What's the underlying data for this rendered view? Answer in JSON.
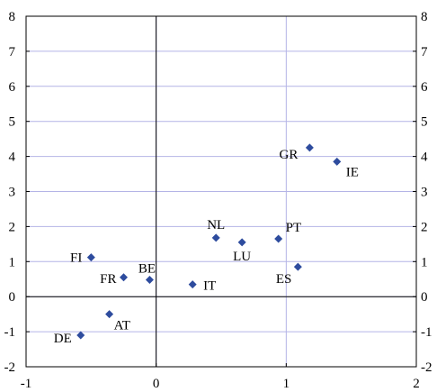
{
  "chart_data": {
    "type": "scatter",
    "title": "",
    "xlabel": "",
    "ylabel": "",
    "xlim": [
      -1,
      2
    ],
    "ylim": [
      -2,
      8
    ],
    "x_ticks": [
      "-1",
      "0",
      "1",
      "2"
    ],
    "y_ticks": [
      "-2",
      "-1",
      "0",
      "1",
      "2",
      "3",
      "4",
      "5",
      "6",
      "7",
      "8"
    ],
    "right_axis_ticks": [
      "-2",
      "-1",
      "0",
      "1",
      "2",
      "3",
      "4",
      "5",
      "6",
      "7",
      "8"
    ],
    "grid": true,
    "reference_lines": {
      "x": 0,
      "y": 0
    },
    "marker": "diamond",
    "marker_color": "#2E4C9E",
    "points": [
      {
        "label": "GR",
        "x": 1.18,
        "y": 4.25
      },
      {
        "label": "IE",
        "x": 1.39,
        "y": 3.85
      },
      {
        "label": "NL",
        "x": 0.46,
        "y": 1.68
      },
      {
        "label": "LU",
        "x": 0.66,
        "y": 1.55
      },
      {
        "label": "PT",
        "x": 0.94,
        "y": 1.65
      },
      {
        "label": "ES",
        "x": 1.09,
        "y": 0.85
      },
      {
        "label": "FI",
        "x": -0.5,
        "y": 1.12
      },
      {
        "label": "FR",
        "x": -0.25,
        "y": 0.55
      },
      {
        "label": "BE",
        "x": -0.05,
        "y": 0.48
      },
      {
        "label": "IT",
        "x": 0.28,
        "y": 0.35
      },
      {
        "label": "AT",
        "x": -0.36,
        "y": -0.5
      },
      {
        "label": "DE",
        "x": -0.58,
        "y": -1.1
      }
    ]
  }
}
